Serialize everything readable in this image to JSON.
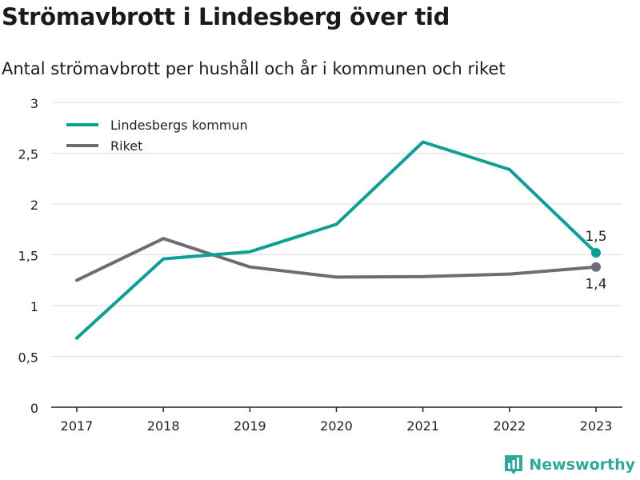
{
  "header": {
    "title": "Strömavbrott i Lindesberg över tid",
    "subtitle": "Antal strömavbrott per hushåll och år i kommunen och riket"
  },
  "brand": {
    "name": "Newsworthy",
    "icon": "newsworthy-logo-icon",
    "color": "#2fa89a"
  },
  "chart_data": {
    "type": "line",
    "title": "Strömavbrott i Lindesberg över tid",
    "subtitle": "Antal strömavbrott per hushåll och år i kommunen och riket",
    "x": [
      "2017",
      "2018",
      "2019",
      "2020",
      "2021",
      "2022",
      "2023"
    ],
    "ylim": [
      0,
      3
    ],
    "yticks": [
      0,
      0.5,
      1,
      1.5,
      2,
      2.5,
      3
    ],
    "ytick_labels": [
      "0",
      "0,5",
      "1",
      "1,5",
      "2",
      "2,5",
      "3"
    ],
    "grid": true,
    "legend": "top-left",
    "series": [
      {
        "name": "Lindesbergs kommun",
        "color": "#0f9e93",
        "values": [
          0.68,
          1.46,
          1.53,
          1.8,
          2.61,
          2.34,
          1.52
        ],
        "end_label": "1,5"
      },
      {
        "name": "Riket",
        "color": "#6d6b75",
        "values": [
          1.25,
          1.66,
          1.38,
          1.28,
          1.285,
          1.31,
          1.38
        ],
        "end_label": "1,4"
      }
    ]
  }
}
